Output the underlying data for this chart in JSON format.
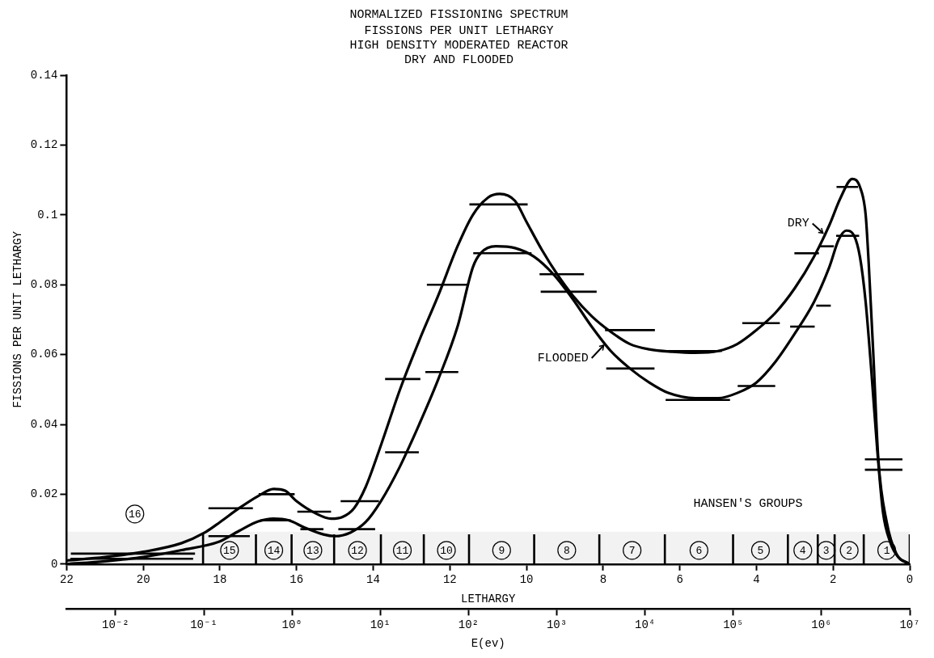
{
  "chart_data": {
    "type": "line",
    "title": "NORMALIZED FISSIONING SPECTRUM",
    "subtitle": "FISSIONS PER UNIT LETHARGY\nHIGH DENSITY MODERATED REACTOR\nDRY AND FLOODED",
    "xlabel": "LETHARGY",
    "x2label": "E(ev)",
    "ylabel": "FISSIONS PER UNIT LETHARGY",
    "xlim": [
      22,
      0
    ],
    "xticks": [
      22,
      20,
      18,
      16,
      14,
      12,
      10,
      8,
      6,
      4,
      2,
      0
    ],
    "x2lim": [
      0.00279,
      10000000
    ],
    "x2ticks": [
      {
        "value": 0.01,
        "label": "10⁻²"
      },
      {
        "value": 0.1,
        "label": "10⁻¹"
      },
      {
        "value": 1,
        "label": "10⁰"
      },
      {
        "value": 10,
        "label": "10¹"
      },
      {
        "value": 100,
        "label": "10²"
      },
      {
        "value": 1000,
        "label": "10³"
      },
      {
        "value": 10000,
        "label": "10⁴"
      },
      {
        "value": 100000,
        "label": "10⁵"
      },
      {
        "value": 1000000,
        "label": "10⁶"
      },
      {
        "value": 10000000,
        "label": "10⁷"
      }
    ],
    "log": "x2",
    "ylim": [
      0,
      0.14
    ],
    "yticks": [
      0,
      0.02,
      0.04,
      0.06,
      0.08,
      0.1,
      0.12,
      0.14
    ],
    "legend": "right",
    "marker": "none",
    "line_style": "solid",
    "series": [
      {
        "name": "DRY",
        "color": "#000000",
        "x": [
          22,
          21,
          20,
          19,
          18.4,
          18,
          17.5,
          17,
          16.6,
          16.3,
          16,
          15.5,
          15.1,
          14.8,
          14.5,
          14.2,
          13.8,
          13.3,
          12.8,
          12.3,
          11.8,
          11.4,
          11,
          10.7,
          10.3,
          10,
          9.6,
          9.2,
          8.8,
          8.3,
          7.8,
          7.3,
          6.8,
          6.2,
          5.6,
          5,
          4.5,
          4,
          3.5,
          3,
          2.5,
          2.1,
          1.8,
          1.5,
          1.3,
          1.15,
          1.07,
          0.95,
          0.82,
          0.6,
          0.35,
          0
        ],
        "values": [
          0.001,
          0.002,
          0.0035,
          0.006,
          0.009,
          0.012,
          0.016,
          0.0195,
          0.0215,
          0.021,
          0.018,
          0.0145,
          0.013,
          0.0135,
          0.016,
          0.022,
          0.034,
          0.05,
          0.064,
          0.077,
          0.091,
          0.1,
          0.105,
          0.106,
          0.104,
          0.098,
          0.09,
          0.083,
          0.077,
          0.071,
          0.0665,
          0.063,
          0.0615,
          0.0608,
          0.0605,
          0.061,
          0.063,
          0.067,
          0.072,
          0.079,
          0.088,
          0.097,
          0.105,
          0.1103,
          0.108,
          0.1,
          0.086,
          0.06,
          0.03,
          0.012,
          0.003,
          0
        ]
      },
      {
        "name": "FLOODED",
        "color": "#000000",
        "x": [
          22,
          21,
          20,
          19,
          18,
          17.5,
          17,
          16.6,
          16.2,
          15.8,
          15.3,
          15,
          14.6,
          14.2,
          13.8,
          13.3,
          12.8,
          12.3,
          11.8,
          11.4,
          11.2,
          10.8,
          10.3,
          9.8,
          9.3,
          8.8,
          8.3,
          7.8,
          7.3,
          6.8,
          6.3,
          5.6,
          5,
          4.5,
          4,
          3.5,
          3,
          2.5,
          2.1,
          1.85,
          1.65,
          1.45,
          1.3,
          1.15,
          1,
          0.85,
          0.7,
          0.5,
          0.3,
          0
        ],
        "values": [
          0,
          0.0008,
          0.002,
          0.004,
          0.0065,
          0.0095,
          0.0122,
          0.013,
          0.0125,
          0.0105,
          0.0085,
          0.008,
          0.009,
          0.012,
          0.018,
          0.028,
          0.04,
          0.053,
          0.068,
          0.085,
          0.089,
          0.091,
          0.0905,
          0.088,
          0.083,
          0.076,
          0.068,
          0.061,
          0.056,
          0.052,
          0.049,
          0.0475,
          0.0475,
          0.049,
          0.052,
          0.058,
          0.066,
          0.075,
          0.085,
          0.093,
          0.0955,
          0.094,
          0.088,
          0.075,
          0.055,
          0.033,
          0.015,
          0.006,
          0.002,
          0
        ]
      },
      {
        "color": "#000000",
        "x": [
          21.89,
          18.65
        ],
        "values": [
          0.003,
          0.003
        ]
      },
      {
        "color": "#000000",
        "x": [
          18.3,
          17.14
        ],
        "values": [
          0.016,
          0.016
        ]
      },
      {
        "color": "#000000",
        "x": [
          16.99,
          16.05
        ],
        "values": [
          0.02,
          0.02
        ]
      },
      {
        "color": "#000000",
        "x": [
          15.98,
          15.1
        ],
        "values": [
          0.015,
          0.015
        ]
      },
      {
        "color": "#000000",
        "x": [
          14.85,
          13.85
        ],
        "values": [
          0.018,
          0.018
        ]
      },
      {
        "color": "#000000",
        "x": [
          13.69,
          12.77
        ],
        "values": [
          0.053,
          0.053
        ]
      },
      {
        "color": "#000000",
        "x": [
          12.6,
          11.52
        ],
        "values": [
          0.08,
          0.08
        ]
      },
      {
        "color": "#000000",
        "x": [
          11.49,
          9.97
        ],
        "values": [
          0.103,
          0.103
        ]
      },
      {
        "color": "#000000",
        "x": [
          9.66,
          8.5
        ],
        "values": [
          0.083,
          0.083
        ]
      },
      {
        "color": "#000000",
        "x": [
          7.95,
          6.65
        ],
        "values": [
          0.067,
          0.067
        ]
      },
      {
        "color": "#000000",
        "x": [
          6.38,
          4.9
        ],
        "values": [
          0.061,
          0.061
        ]
      },
      {
        "color": "#000000",
        "x": [
          4.37,
          3.39
        ],
        "values": [
          0.069,
          0.069
        ]
      },
      {
        "color": "#000000",
        "x": [
          3.01,
          2.37
        ],
        "values": [
          0.089,
          0.089
        ]
      },
      {
        "color": "#000000",
        "x": [
          2.38,
          1.98
        ],
        "values": [
          0.091,
          0.091
        ]
      },
      {
        "color": "#000000",
        "x": [
          1.91,
          1.35
        ],
        "values": [
          0.108,
          0.108
        ]
      },
      {
        "color": "#000000",
        "x": [
          1.17,
          0.19
        ],
        "values": [
          0.03,
          0.03
        ]
      },
      {
        "color": "#000000",
        "x": [
          21.9,
          18.7
        ],
        "values": [
          0.0015,
          0.0015
        ]
      },
      {
        "color": "#000000",
        "x": [
          18.3,
          17.22
        ],
        "values": [
          0.008,
          0.008
        ]
      },
      {
        "color": "#000000",
        "x": [
          16.95,
          16.15
        ],
        "values": [
          0.0125,
          0.0125
        ]
      },
      {
        "color": "#000000",
        "x": [
          15.9,
          15.3
        ],
        "values": [
          0.01,
          0.01
        ]
      },
      {
        "color": "#000000",
        "x": [
          14.91,
          13.95
        ],
        "values": [
          0.01,
          0.01
        ]
      },
      {
        "color": "#000000",
        "x": [
          13.69,
          12.81
        ],
        "values": [
          0.032,
          0.032
        ]
      },
      {
        "color": "#000000",
        "x": [
          12.64,
          11.78
        ],
        "values": [
          0.055,
          0.055
        ]
      },
      {
        "color": "#000000",
        "x": [
          11.39,
          9.87
        ],
        "values": [
          0.089,
          0.089
        ]
      },
      {
        "color": "#000000",
        "x": [
          9.63,
          8.17
        ],
        "values": [
          0.078,
          0.078
        ]
      },
      {
        "color": "#000000",
        "x": [
          7.92,
          6.66
        ],
        "values": [
          0.056,
          0.056
        ]
      },
      {
        "color": "#000000",
        "x": [
          6.37,
          4.69
        ],
        "values": [
          0.047,
          0.047
        ]
      },
      {
        "color": "#000000",
        "x": [
          4.49,
          3.51
        ],
        "values": [
          0.051,
          0.051
        ]
      },
      {
        "color": "#000000",
        "x": [
          3.12,
          2.48
        ],
        "values": [
          0.068,
          0.068
        ]
      },
      {
        "color": "#000000",
        "x": [
          2.44,
          2.06
        ],
        "values": [
          0.074,
          0.074
        ]
      },
      {
        "color": "#000000",
        "x": [
          1.92,
          1.32
        ],
        "values": [
          0.094,
          0.094
        ]
      },
      {
        "color": "#000000",
        "x": [
          1.17,
          0.19
        ],
        "values": [
          0.027,
          0.027
        ]
      },
      {
        "color": "#000000",
        "x": [
          18.44,
          18.44
        ],
        "values": [
          0,
          0.0085
        ]
      },
      {
        "color": "#000000",
        "x": [
          17.06,
          17.06
        ],
        "values": [
          0,
          0.0085
        ]
      },
      {
        "color": "#000000",
        "x": [
          16.13,
          16.13
        ],
        "values": [
          0,
          0.0085
        ]
      },
      {
        "color": "#000000",
        "x": [
          15.02,
          15.02
        ],
        "values": [
          0,
          0.0085
        ]
      },
      {
        "color": "#000000",
        "x": [
          13.8,
          13.8
        ],
        "values": [
          0,
          0.0085
        ]
      },
      {
        "color": "#000000",
        "x": [
          12.68,
          12.68
        ],
        "values": [
          0,
          0.0085
        ]
      },
      {
        "color": "#000000",
        "x": [
          11.5,
          11.5
        ],
        "values": [
          0,
          0.0085
        ]
      },
      {
        "color": "#000000",
        "x": [
          9.8,
          9.8
        ],
        "values": [
          0,
          0.0085
        ]
      },
      {
        "color": "#000000",
        "x": [
          8.1,
          8.1
        ],
        "values": [
          0,
          0.0085
        ]
      },
      {
        "color": "#000000",
        "x": [
          6.39,
          6.39
        ],
        "values": [
          0,
          0.0085
        ]
      },
      {
        "color": "#000000",
        "x": [
          4.61,
          4.61
        ],
        "values": [
          0,
          0.0085
        ]
      },
      {
        "color": "#000000",
        "x": [
          3.18,
          3.18
        ],
        "values": [
          0,
          0.0085
        ]
      },
      {
        "color": "#000000",
        "x": [
          2.4,
          2.4
        ],
        "values": [
          0,
          0.0085
        ]
      },
      {
        "color": "#000000",
        "x": [
          1.96,
          1.96
        ],
        "values": [
          0,
          0.0085
        ]
      },
      {
        "color": "#000000",
        "x": [
          1.2,
          1.2
        ],
        "values": [
          0,
          0.0085
        ]
      },
      {
        "color": "#000000",
        "x": [
          0,
          0
        ],
        "values": [
          0,
          0.0085
        ]
      }
    ],
    "bands": [
      {
        "axis": "x",
        "from": 22,
        "to": 18.44,
        "label": "16"
      },
      {
        "axis": "x",
        "from": 18.44,
        "to": 17.06,
        "label": "15"
      },
      {
        "axis": "x",
        "from": 17.06,
        "to": 16.13,
        "label": "14"
      },
      {
        "axis": "x",
        "from": 16.13,
        "to": 15.02,
        "label": "13"
      },
      {
        "axis": "x",
        "from": 15.02,
        "to": 13.8,
        "label": "12"
      },
      {
        "axis": "x",
        "from": 13.8,
        "to": 12.68,
        "label": "11"
      },
      {
        "axis": "x",
        "from": 12.68,
        "to": 11.5,
        "label": "10"
      },
      {
        "axis": "x",
        "from": 11.5,
        "to": 9.8,
        "label": "9"
      },
      {
        "axis": "x",
        "from": 9.8,
        "to": 8.1,
        "label": "8"
      },
      {
        "axis": "x",
        "from": 8.1,
        "to": 6.39,
        "label": "7"
      },
      {
        "axis": "x",
        "from": 6.39,
        "to": 4.61,
        "label": "6"
      },
      {
        "axis": "x",
        "from": 4.61,
        "to": 3.18,
        "label": "5"
      },
      {
        "axis": "x",
        "from": 3.18,
        "to": 2.4,
        "label": "4"
      },
      {
        "axis": "x",
        "from": 2.4,
        "to": 1.96,
        "label": "3"
      },
      {
        "axis": "x",
        "from": 1.96,
        "to": 1.2,
        "label": "2"
      },
      {
        "axis": "x",
        "from": 1.2,
        "to": 0,
        "label": "1"
      }
    ],
    "annotations": [
      "HANSEN'S GROUPS"
    ]
  }
}
